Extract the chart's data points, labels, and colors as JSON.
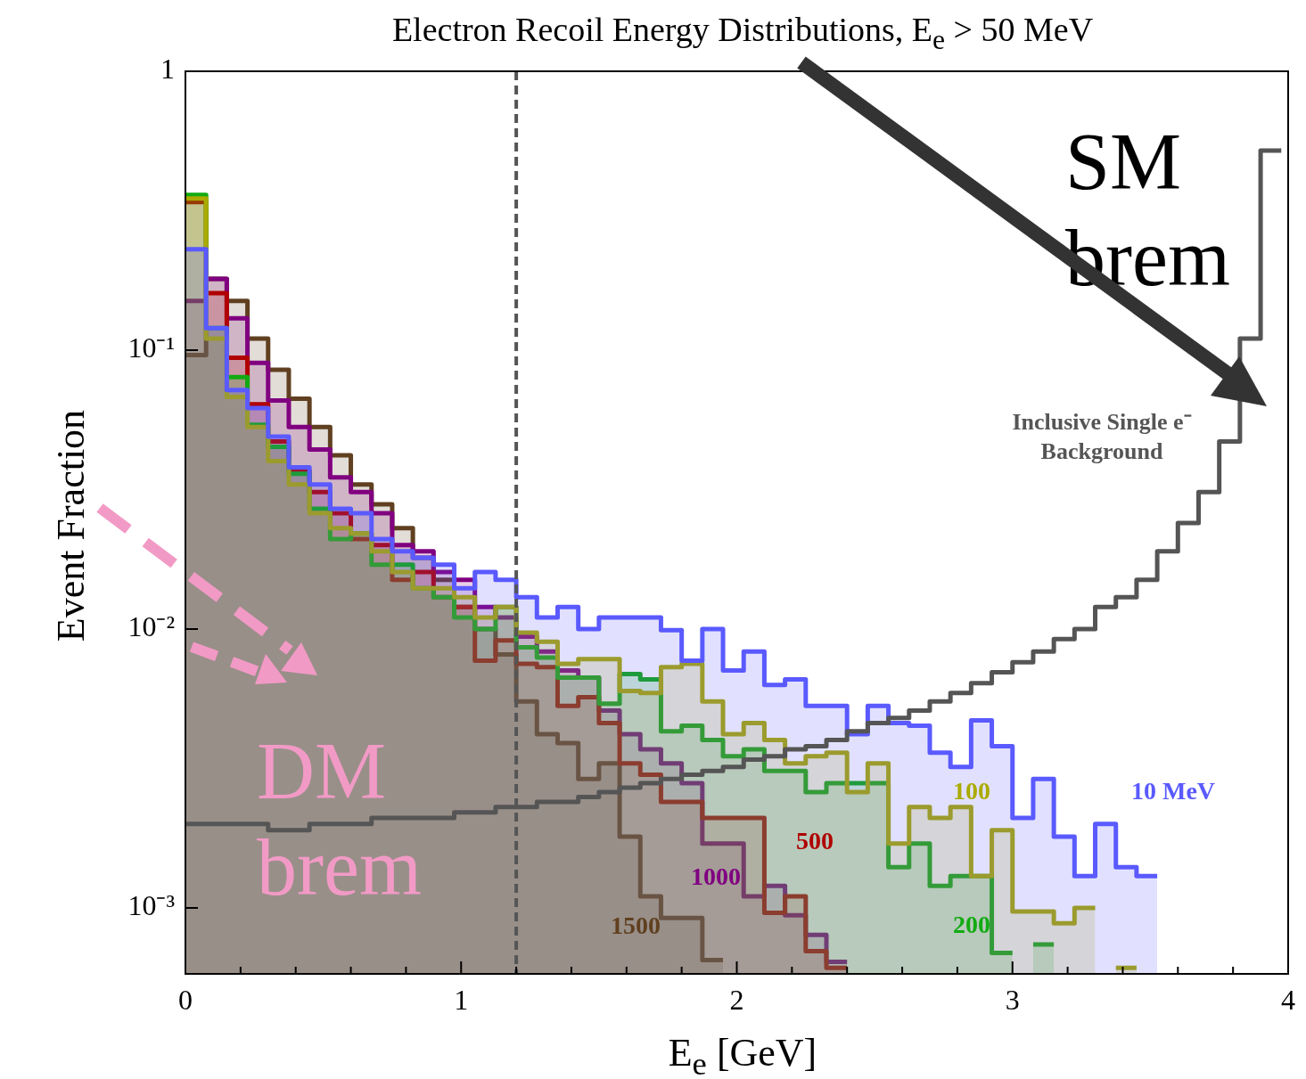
{
  "chart_data": {
    "type": "area",
    "title": "Electron Recoil Energy Distributions, E$_{e}$ > 50 MeV",
    "xlabel": "E$_{e}$ [GeV]",
    "ylabel": "Event Fraction",
    "annotations": [
      "SM brem",
      "DM brem"
    ],
    "x": [
      0,
      0.075,
      0.075,
      0.15,
      0.15,
      0.225,
      0.225,
      0.3,
      0.3,
      0.375,
      0.375,
      0.45,
      0.45,
      0.525,
      0.525,
      0.6,
      0.6,
      0.675,
      0.675,
      0.75,
      0.75,
      0.825,
      0.825,
      0.9,
      0.9,
      0.975,
      0.975,
      1.05,
      1.05,
      1.125,
      1.125,
      1.2,
      1.2,
      1.275,
      1.275,
      1.35,
      1.35,
      1.425,
      1.425,
      1.5,
      1.5,
      1.575,
      1.575,
      1.65,
      1.65,
      1.725,
      1.725,
      1.8,
      1.8,
      1.875,
      1.875,
      1.95,
      1.95,
      2.025,
      2.025,
      2.1,
      2.1,
      2.175,
      2.175,
      2.25,
      2.25,
      2.325,
      2.325,
      2.4,
      2.4,
      2.475,
      2.475,
      2.55,
      2.55,
      2.625,
      2.625,
      2.7,
      2.7,
      2.775,
      2.775,
      2.85,
      2.85,
      2.925,
      2.925,
      3.0,
      3.0,
      3.075,
      3.075,
      3.15,
      3.15,
      3.225,
      3.225,
      3.3,
      3.3,
      3.375,
      3.375,
      3.45,
      3.45,
      3.525
    ],
    "series": [
      {
        "name": "10 MeV",
        "color": "#5a5aff",
        "values": [
          0.23,
          0.23,
          0.12,
          0.12,
          0.072,
          0.072,
          0.062,
          0.062,
          0.049,
          0.049,
          0.038,
          0.038,
          0.033,
          0.033,
          0.027,
          0.027,
          0.026,
          0.026,
          0.021,
          0.021,
          0.019,
          0.019,
          0.018,
          0.018,
          0.017,
          0.017,
          0.014,
          0.014,
          0.016,
          0.016,
          0.015,
          0.015,
          0.013,
          0.013,
          0.011,
          0.011,
          0.012,
          0.012,
          0.01,
          0.01,
          0.011,
          0.011,
          0.011,
          0.011,
          0.011,
          0.011,
          0.0099,
          0.0099,
          0.0077,
          0.0077,
          0.01,
          0.01,
          0.0071,
          0.0071,
          0.0083,
          0.0083,
          0.0063,
          0.0063,
          0.0066,
          0.0066,
          0.0053,
          0.0053,
          0.0053,
          0.0053,
          0.0042,
          0.0042,
          0.0053,
          0.0053,
          0.0046,
          0.0046,
          0.0045,
          0.0045,
          0.0036,
          0.0036,
          0.0032,
          0.0032,
          0.0047,
          0.0047,
          0.0038,
          0.0038,
          0.0021,
          0.0021,
          0.0029,
          0.0029,
          0.0018,
          0.0018,
          0.0013,
          0.0013,
          0.002,
          0.002,
          0.0014,
          0.0014,
          0.0013,
          0.0013
        ]
      },
      {
        "name": "100",
        "color": "#aaaa00",
        "values": [
          0.35,
          0.35,
          0.11,
          0.11,
          0.068,
          0.068,
          0.053,
          0.053,
          0.04,
          0.04,
          0.033,
          0.033,
          0.026,
          0.026,
          0.023,
          0.023,
          0.022,
          0.022,
          0.019,
          0.019,
          0.016,
          0.016,
          0.014,
          0.014,
          0.014,
          0.014,
          0.013,
          0.013,
          0.011,
          0.011,
          0.012,
          0.012,
          0.0097,
          0.0097,
          0.009,
          0.009,
          0.0075,
          0.0075,
          0.0078,
          0.0078,
          0.0078,
          0.0078,
          0.006,
          0.006,
          0.0059,
          0.0059,
          0.0073,
          0.0073,
          0.0075,
          0.0075,
          0.0055,
          0.0055,
          0.0042,
          0.0042,
          0.0046,
          0.0046,
          0.004,
          0.004,
          0.0033,
          0.0033,
          0.0035,
          0.0035,
          0.0036,
          0.0036,
          0.0026,
          0.0026,
          0.0033,
          0.0033,
          0.0017,
          0.0017,
          0.0023,
          0.0023,
          0.0021,
          0.0021,
          0.0023,
          0.0023,
          0.0013,
          0.0013,
          0.0019,
          0.0019,
          0.00097,
          0.00097,
          0.00097,
          0.00097,
          0.00088,
          0.00088,
          0.001,
          0.001,
          null,
          null,
          0.00061,
          0.00061,
          null,
          null
        ]
      },
      {
        "name": "200",
        "color": "#12aa12",
        "values": [
          0.36,
          0.36,
          0.12,
          0.12,
          0.08,
          0.08,
          0.054,
          0.054,
          0.045,
          0.045,
          0.036,
          0.036,
          0.027,
          0.027,
          0.021,
          0.021,
          0.022,
          0.022,
          0.017,
          0.017,
          0.017,
          0.017,
          0.014,
          0.014,
          0.013,
          0.013,
          0.011,
          0.011,
          0.01,
          0.01,
          0.012,
          0.012,
          0.0086,
          0.0086,
          0.0079,
          0.0079,
          0.0067,
          0.0067,
          0.0067,
          0.0067,
          0.0054,
          0.0054,
          0.0069,
          0.0069,
          0.0066,
          0.0066,
          0.0043,
          0.0043,
          0.0045,
          0.0045,
          0.004,
          0.004,
          0.0035,
          0.0035,
          0.0037,
          0.0037,
          0.0031,
          0.0031,
          0.0031,
          0.0031,
          0.0026,
          0.0026,
          0.0028,
          0.0028,
          0.0028,
          0.0028,
          0.0028,
          0.0028,
          0.0014,
          0.0014,
          0.0017,
          0.0017,
          0.0012,
          0.0012,
          0.0013,
          0.0013,
          0.0013,
          0.0013,
          0.00069,
          0.00069,
          null,
          null,
          0.00074,
          0.00074,
          null,
          null,
          null,
          null,
          null,
          null,
          null,
          null,
          null,
          null
        ]
      },
      {
        "name": "500",
        "color": "#b00000",
        "values": [
          0.34,
          0.34,
          0.16,
          0.16,
          0.094,
          0.094,
          0.064,
          0.064,
          0.047,
          0.047,
          0.037,
          0.037,
          0.031,
          0.031,
          0.026,
          0.026,
          0.021,
          0.021,
          0.02,
          0.02,
          0.015,
          0.015,
          0.016,
          0.016,
          0.013,
          0.013,
          0.012,
          0.012,
          0.0077,
          0.0077,
          0.0091,
          0.0091,
          0.0075,
          0.0075,
          0.0073,
          0.0073,
          0.0053,
          0.0053,
          0.0057,
          0.0057,
          0.0046,
          0.0046,
          0.0033,
          0.0033,
          0.003,
          0.003,
          0.0024,
          0.0024,
          0.0024,
          0.0024,
          0.0021,
          0.0021,
          0.0021,
          0.0021,
          0.0021,
          0.0021,
          0.00096,
          0.00096,
          0.0011,
          0.0011,
          0.0007,
          0.0007,
          0.00061,
          0.00061,
          null,
          null,
          null,
          null,
          null,
          null,
          null,
          null,
          null,
          null,
          null,
          null,
          null,
          null,
          null,
          null,
          null,
          null,
          null,
          null,
          null,
          null,
          null,
          null,
          null,
          null,
          null,
          null,
          null,
          null
        ]
      },
      {
        "name": "1000",
        "color": "#800080",
        "values": [
          0.15,
          0.15,
          0.18,
          0.18,
          0.13,
          0.13,
          0.09,
          0.09,
          0.066,
          0.066,
          0.053,
          0.053,
          0.044,
          0.044,
          0.035,
          0.035,
          0.031,
          0.031,
          0.026,
          0.026,
          0.02,
          0.02,
          0.019,
          0.019,
          0.016,
          0.016,
          0.015,
          0.015,
          0.012,
          0.012,
          0.011,
          0.011,
          0.0094,
          0.0094,
          0.0083,
          0.0083,
          0.0071,
          0.0071,
          0.0067,
          0.0067,
          0.0051,
          0.0051,
          0.0042,
          0.0042,
          0.0037,
          0.0037,
          0.0033,
          0.0033,
          0.0028,
          0.0028,
          0.0017,
          0.0017,
          0.0017,
          0.0017,
          0.0011,
          0.0011,
          0.0012,
          0.0012,
          0.00094,
          0.00094,
          0.0008,
          0.0008,
          0.00064,
          0.00064,
          null,
          null,
          null,
          null,
          null,
          null,
          null,
          null,
          null,
          null,
          null,
          null,
          null,
          null,
          null,
          null,
          null,
          null,
          null,
          null,
          null,
          null,
          null,
          null,
          null,
          null,
          null,
          null,
          null,
          null
        ]
      },
      {
        "name": "1500",
        "color": "#604020",
        "values": [
          0.096,
          0.096,
          0.18,
          0.18,
          0.15,
          0.15,
          0.11,
          0.11,
          0.085,
          0.085,
          0.067,
          0.067,
          0.053,
          0.053,
          0.042,
          0.042,
          0.033,
          0.033,
          0.028,
          0.028,
          0.023,
          0.023,
          0.018,
          0.018,
          0.015,
          0.015,
          0.012,
          0.012,
          0.01,
          0.01,
          0.0081,
          0.0081,
          0.0055,
          0.0055,
          0.0042,
          0.0042,
          0.0039,
          0.0039,
          0.0029,
          0.0029,
          0.0033,
          0.0033,
          0.0018,
          0.0018,
          0.0011,
          0.0011,
          0.00092,
          0.00092,
          0.00092,
          0.00092,
          0.00065,
          0.00065,
          null,
          null,
          null,
          null,
          null,
          null,
          null,
          null,
          null,
          null,
          null,
          null,
          null,
          null,
          null,
          null,
          null,
          null,
          null,
          null,
          null,
          null,
          null,
          null,
          null,
          null,
          null,
          null,
          null,
          null,
          null,
          null,
          null,
          null,
          null,
          null,
          null,
          null,
          null,
          null,
          null,
          null
        ]
      },
      {
        "name": "Inclusive Single e⁻ Background",
        "type": "step",
        "color": "#555555",
        "x": [
          0,
          0.075,
          0.15,
          0.225,
          0.3,
          0.375,
          0.45,
          0.525,
          0.6,
          0.675,
          0.75,
          0.825,
          0.9,
          0.975,
          1.05,
          1.125,
          1.2,
          1.275,
          1.35,
          1.425,
          1.5,
          1.575,
          1.65,
          1.725,
          1.8,
          1.875,
          1.95,
          2.025,
          2.1,
          2.175,
          2.25,
          2.325,
          2.4,
          2.475,
          2.55,
          2.625,
          2.7,
          2.775,
          2.85,
          2.925,
          3.0,
          3.075,
          3.15,
          3.225,
          3.3,
          3.375,
          3.45,
          3.525,
          3.6,
          3.675,
          3.75,
          3.825,
          3.9,
          3.975
        ],
        "values": [
          0.002,
          0.002,
          0.002,
          0.002,
          0.002,
          0.0019,
          0.0019,
          0.002,
          0.002,
          0.002,
          0.0021,
          0.0021,
          0.0021,
          0.0021,
          0.0022,
          0.0022,
          0.0023,
          0.0023,
          0.0024,
          0.0024,
          0.0025,
          0.0026,
          0.0027,
          0.0028,
          0.0029,
          0.003,
          0.0031,
          0.0032,
          0.0034,
          0.0035,
          0.0037,
          0.0038,
          0.004,
          0.0043,
          0.0046,
          0.0048,
          0.0051,
          0.0055,
          0.0059,
          0.0064,
          0.007,
          0.0076,
          0.0083,
          0.0092,
          0.01,
          0.012,
          0.013,
          0.015,
          0.019,
          0.024,
          0.031,
          0.047,
          0.11,
          0.52
        ]
      }
    ],
    "xlim": [
      0,
      4
    ],
    "xticks": [
      0,
      {
        "value": 0.2,
        "label": null
      },
      {
        "value": 0.4,
        "label": null
      },
      {
        "value": 0.6,
        "label": null
      },
      {
        "value": 0.8,
        "label": null
      },
      1,
      {
        "value": 1.2,
        "label": null
      },
      {
        "value": 1.4,
        "label": null
      },
      {
        "value": 1.6,
        "label": null
      },
      {
        "value": 1.8,
        "label": null
      },
      2,
      {
        "value": 2.2,
        "label": null
      },
      {
        "value": 2.4,
        "label": null
      },
      {
        "value": 2.6,
        "label": null
      },
      {
        "value": 2.8,
        "label": null
      },
      3,
      {
        "value": 3.2,
        "label": null
      },
      {
        "value": 3.4,
        "label": null
      },
      {
        "value": 3.6,
        "label": null
      },
      {
        "value": 3.8,
        "label": null
      },
      4
    ],
    "ylim": [
      0.00058,
      1
    ],
    "yticks": [
      1,
      {
        "value": 0.1,
        "label": "10⁻¹"
      },
      {
        "value": 0.01,
        "label": "10⁻²"
      },
      {
        "value": 0.001,
        "label": "10⁻³"
      }
    ],
    "log": "y",
    "grid": false,
    "ref_lines": [
      {
        "axis": "x",
        "value": 1.2,
        "color": "#555555",
        "line_style": "dashed"
      }
    ]
  }
}
